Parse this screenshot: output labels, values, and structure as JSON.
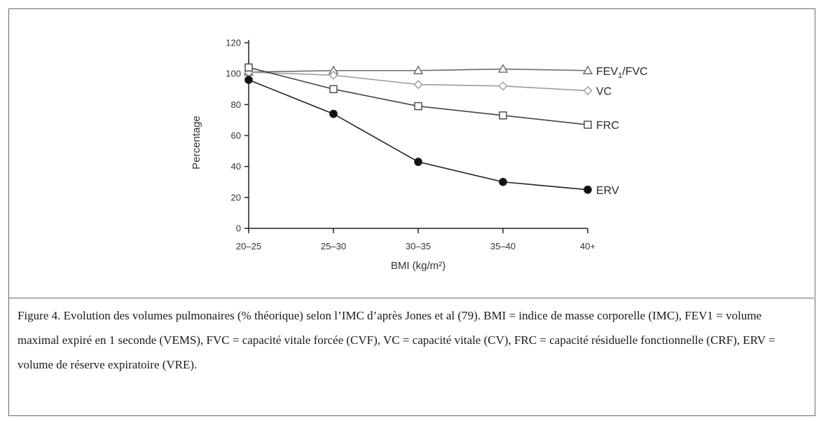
{
  "chart_data": {
    "type": "line",
    "categories": [
      "20–25",
      "25–30",
      "30–35",
      "35–40",
      "40+"
    ],
    "xlabel": "BMI (kg/m²)",
    "ylabel": "Percentage",
    "ylim": [
      0,
      120
    ],
    "yticks": [
      0,
      20,
      40,
      60,
      80,
      100,
      120
    ],
    "grid": false,
    "legend": "end-of-line labels",
    "series": [
      {
        "name": "FEV₁/FVC",
        "marker": "triangle-open",
        "color": "#6a6a6a",
        "values": [
          101,
          102,
          102,
          103,
          102
        ]
      },
      {
        "name": "VC",
        "marker": "diamond-open",
        "color": "#9a9a9a",
        "values": [
          101,
          99,
          93,
          92,
          89
        ]
      },
      {
        "name": "FRC",
        "marker": "square-open",
        "color": "#444444",
        "values": [
          104,
          90,
          79,
          73,
          67
        ]
      },
      {
        "name": "ERV",
        "marker": "circle-filled",
        "color": "#222222",
        "values": [
          96,
          74,
          43,
          30,
          25
        ]
      }
    ]
  },
  "caption": "Figure 4. Evolution des volumes pulmonaires (% théorique) selon l’IMC d’après Jones et al (79). BMI = indice de masse corporelle (IMC), FEV1 = volume maximal expiré en 1 seconde (VEMS), FVC = capacité vitale forcée (CVF), VC = capacité vitale (CV), FRC = capacité résiduelle fonctionnelle (CRF), ERV = volume de réserve expiratoire (VRE)."
}
